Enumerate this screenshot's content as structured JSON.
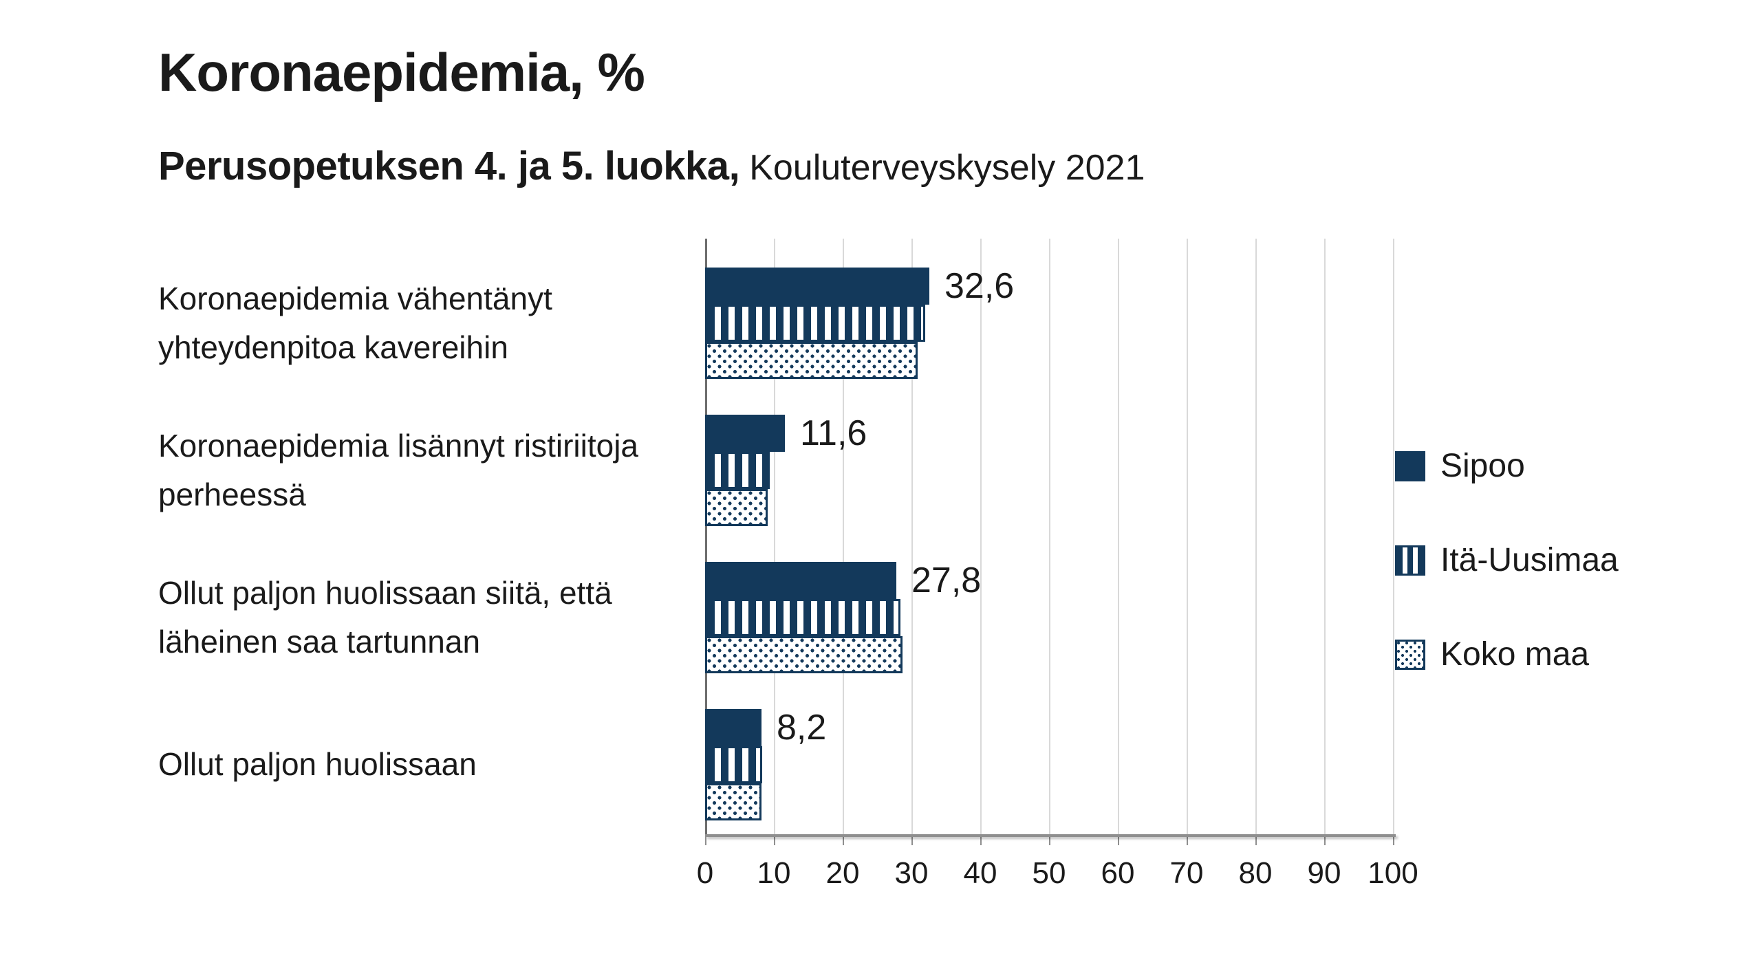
{
  "title": "Koronaepidemia, %",
  "subtitle_bold": "Perusopetuksen 4. ja 5. luokka,",
  "subtitle_regular": "Kouluterveyskysely 2021",
  "colors": {
    "bar_navy": "#13395B",
    "gridline": "#D9D9D9",
    "axis_line": "#8F8F8F",
    "zero_axis_line": "#6E6E6E",
    "text": "#1A1A1A",
    "background": "#FFFFFF"
  },
  "chart_data": {
    "type": "bar",
    "orientation": "horizontal",
    "title": "Koronaepidemia, %",
    "subtitle": "Perusopetuksen 4. ja 5. luokka, Kouluterveyskysely 2021",
    "categories": [
      "Koronaepidemia vähentänyt yhteydenpitoa kavereihin",
      "Koronaepidemia lisännyt ristiriitoja perheessä",
      "Ollut paljon huolissaan siitä, että läheinen saa tartunnan",
      "Ollut paljon huolissaan"
    ],
    "series": [
      {
        "name": "Sipoo",
        "pattern": "solid",
        "values": [
          32.6,
          11.6,
          27.8,
          8.2
        ],
        "labels": [
          "32,6",
          "11,6",
          "27,8",
          "8,2"
        ]
      },
      {
        "name": "Itä-Uusimaa",
        "pattern": "striped",
        "values": [
          32.0,
          9.4,
          28.4,
          8.3
        ]
      },
      {
        "name": "Koko maa",
        "pattern": "dotted",
        "values": [
          30.9,
          9.1,
          28.7,
          8.2
        ]
      }
    ],
    "xlabel": "",
    "ylabel": "",
    "xlim": [
      0,
      100
    ],
    "xticks": [
      0,
      10,
      20,
      30,
      40,
      50,
      60,
      70,
      80,
      90,
      100
    ],
    "grid": "vertical",
    "legend_position": "right",
    "value_labels": "first series only, decimal comma"
  },
  "legend": {
    "items": [
      {
        "label": "Sipoo",
        "pattern": "solid"
      },
      {
        "label": "Itä-Uusimaa",
        "pattern": "striped"
      },
      {
        "label": "Koko maa",
        "pattern": "dotted"
      }
    ]
  }
}
